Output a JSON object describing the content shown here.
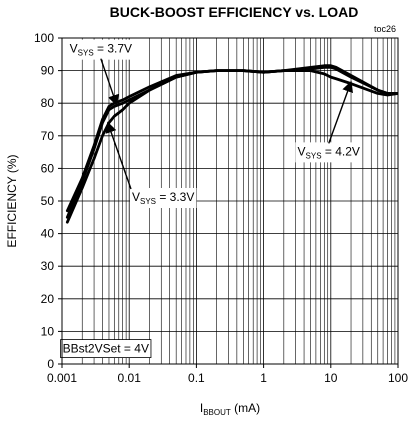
{
  "chart_data": {
    "type": "line",
    "title": "BUCK-BOOST EFFICIENCY vs. LOAD",
    "code": "toc26",
    "xlabel": {
      "main": "I",
      "sub": "BBOUT",
      "unit": " (mA)"
    },
    "ylabel": "EFFICIENCY (%)",
    "xscale": "log",
    "xlim": [
      0.001,
      100
    ],
    "ylim": [
      0,
      100
    ],
    "grid": true,
    "x_ticks": [
      {
        "value": 0.001,
        "label": "0.001"
      },
      {
        "value": 0.01,
        "label": "0.01"
      },
      {
        "value": 0.1,
        "label": "0.1"
      },
      {
        "value": 1,
        "label": "1"
      },
      {
        "value": 10,
        "label": "10"
      },
      {
        "value": 100,
        "label": "100"
      }
    ],
    "y_ticks": [
      {
        "value": 0,
        "label": "0"
      },
      {
        "value": 10,
        "label": "10"
      },
      {
        "value": 20,
        "label": "20"
      },
      {
        "value": 30,
        "label": "30"
      },
      {
        "value": 40,
        "label": "40"
      },
      {
        "value": 50,
        "label": "50"
      },
      {
        "value": 60,
        "label": "60"
      },
      {
        "value": 70,
        "label": "70"
      },
      {
        "value": 80,
        "label": "80"
      },
      {
        "value": 90,
        "label": "90"
      },
      {
        "value": 100,
        "label": "100"
      }
    ],
    "series": [
      {
        "name": "VSYS = 3.7V",
        "color": "#000000",
        "x": [
          0.0012,
          0.002,
          0.003,
          0.004,
          0.005,
          0.006,
          0.008,
          0.01,
          0.02,
          0.05,
          0.1,
          0.2,
          0.5,
          1,
          2,
          5,
          8,
          10,
          12,
          20,
          50,
          70,
          100
        ],
        "y": [
          45,
          56,
          66,
          74,
          78,
          79,
          80,
          81,
          84,
          88,
          89.5,
          90,
          90,
          89.5,
          90,
          90.5,
          91,
          91,
          90.5,
          88,
          84,
          83,
          83
        ]
      },
      {
        "name": "VSYS = 3.3V",
        "color": "#000000",
        "x": [
          0.0012,
          0.002,
          0.003,
          0.004,
          0.005,
          0.006,
          0.008,
          0.01,
          0.02,
          0.05,
          0.1,
          0.2,
          0.5,
          1,
          2,
          5,
          8,
          10,
          12,
          20,
          50,
          70,
          100
        ],
        "y": [
          43.5,
          54,
          63,
          70,
          74,
          76,
          78,
          80,
          84,
          88,
          89.5,
          90,
          90,
          89.5,
          90,
          90,
          89,
          88,
          87.5,
          86,
          83,
          82.5,
          83
        ]
      },
      {
        "name": "VSYS = 4.2V",
        "color": "#000000",
        "x": [
          0.0012,
          0.002,
          0.003,
          0.004,
          0.005,
          0.006,
          0.008,
          0.01,
          0.02,
          0.05,
          0.1,
          0.2,
          0.5,
          1,
          2,
          5,
          8,
          10,
          12,
          20,
          50,
          70,
          100
        ],
        "y": [
          47,
          57,
          67,
          75,
          79,
          80,
          81,
          82,
          85,
          88.5,
          89.5,
          90,
          90,
          89.5,
          90,
          91,
          91.5,
          91.5,
          91,
          88.5,
          84,
          83,
          83
        ]
      }
    ],
    "annotations": [
      {
        "prefix": "V",
        "sub": "SYS",
        "suffix": " = 3.7V",
        "label_x": 0.0013,
        "label_y": 95.5,
        "arrow_to_x": 0.0065,
        "arrow_to_y": 79.5
      },
      {
        "prefix": "V",
        "sub": "SYS",
        "suffix": " = 3.3V",
        "label_x": 0.011,
        "label_y": 50,
        "arrow_to_x": 0.0048,
        "arrow_to_y": 74
      },
      {
        "prefix": "V",
        "sub": "SYS",
        "suffix": " = 4.2V",
        "label_x": 3.2,
        "label_y": 64,
        "arrow_to_x": 20,
        "arrow_to_y": 86.5
      },
      {
        "prefix": "BBst2VSet = 4V",
        "sub": "",
        "suffix": "",
        "label_x": 0.00102,
        "label_y": 3.5,
        "boxed": true
      }
    ]
  }
}
